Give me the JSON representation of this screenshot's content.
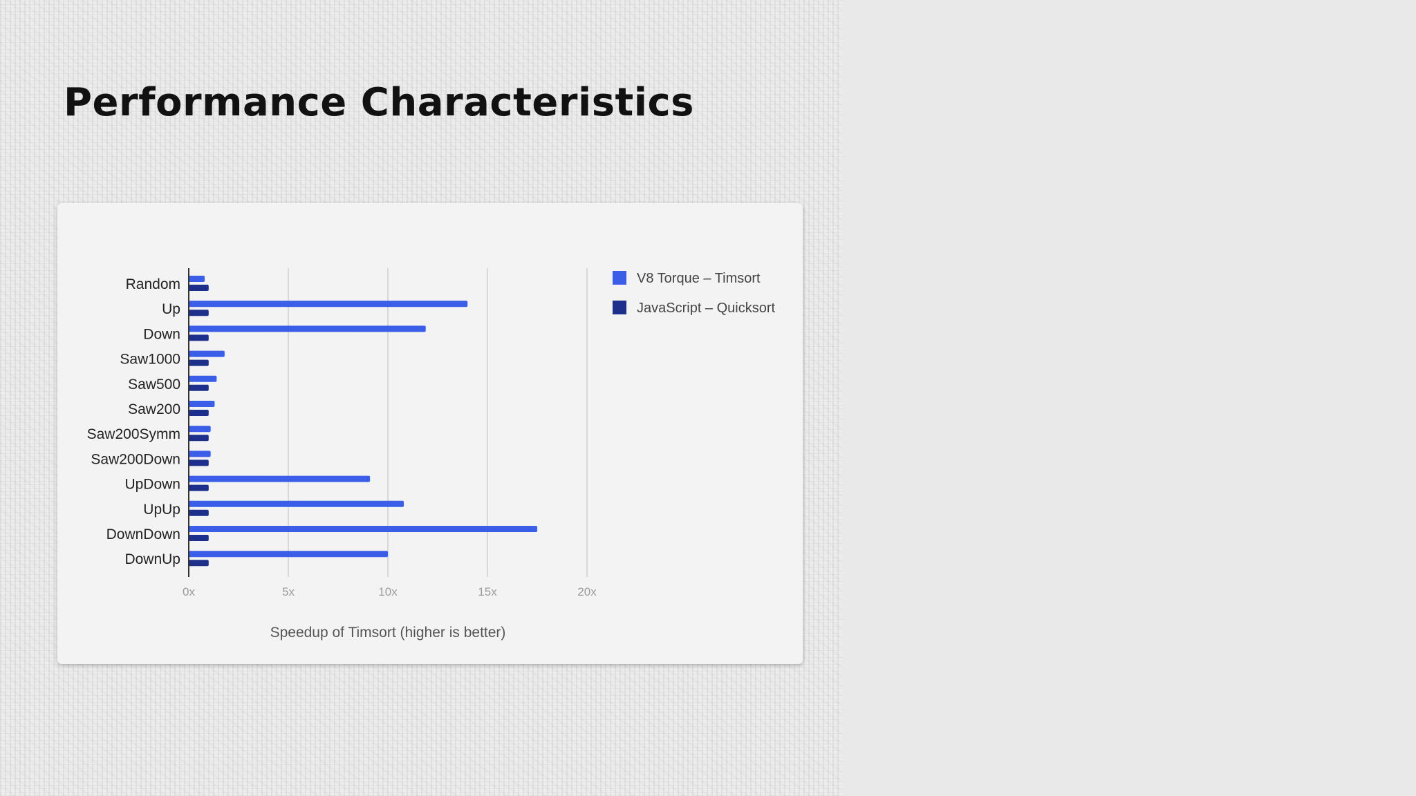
{
  "slide": {
    "title": "Performance Characteristics"
  },
  "colors": {
    "series_timsort": "#3b5ee8",
    "series_quicksort": "#1c2f8a",
    "gridline": "#cfcfcf"
  },
  "chart_data": {
    "type": "bar",
    "orientation": "horizontal",
    "categories": [
      "Random",
      "Up",
      "Down",
      "Saw1000",
      "Saw500",
      "Saw200",
      "Saw200Symm",
      "Saw200Down",
      "UpDown",
      "UpUp",
      "DownDown",
      "DownUp"
    ],
    "series": [
      {
        "name": "V8 Torque – Timsort",
        "values": [
          0.8,
          14.0,
          11.9,
          1.8,
          1.4,
          1.3,
          1.1,
          1.1,
          9.1,
          10.8,
          17.5,
          10.0
        ]
      },
      {
        "name": "JavaScript – Quicksort",
        "values": [
          1,
          1,
          1,
          1,
          1,
          1,
          1,
          1,
          1,
          1,
          1,
          1
        ]
      }
    ],
    "xlim": [
      0,
      20
    ],
    "xticks": [
      0,
      5,
      10,
      15,
      20
    ],
    "xtick_labels": [
      "0x",
      "5x",
      "10x",
      "15x",
      "20x"
    ],
    "xlabel": "Speedup of Timsort (higher is better)",
    "grid": true,
    "legend": "top-right"
  }
}
